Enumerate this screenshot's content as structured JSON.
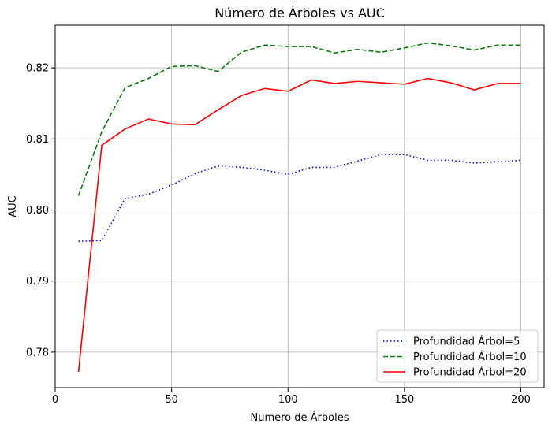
{
  "chart_data": {
    "type": "line",
    "title": "Número de Árboles vs AUC",
    "xlabel": "Numero de Árboles",
    "ylabel": "AUC",
    "xlim": [
      0,
      210
    ],
    "ylim": [
      0.775,
      0.826
    ],
    "xticks": [
      0,
      50,
      100,
      150,
      200
    ],
    "yticks": [
      0.78,
      0.79,
      0.8,
      0.81,
      0.82
    ],
    "ytick_labels": [
      "0.78",
      "0.79",
      "0.80",
      "0.81",
      "0.82"
    ],
    "grid": true,
    "legend_position": "lower-right",
    "x": [
      10,
      20,
      30,
      40,
      50,
      60,
      70,
      80,
      90,
      100,
      110,
      120,
      130,
      140,
      150,
      160,
      170,
      180,
      190,
      200
    ],
    "series": [
      {
        "name": "Profundidad Árbol=5",
        "color": "#0000ff",
        "dash": "dotted",
        "values": [
          0.7956,
          0.7957,
          0.8016,
          0.8022,
          0.8035,
          0.8051,
          0.8062,
          0.806,
          0.8056,
          0.805,
          0.806,
          0.806,
          0.8069,
          0.8078,
          0.8078,
          0.807,
          0.807,
          0.8066,
          0.8068,
          0.807
        ]
      },
      {
        "name": "Profundidad Árbol=10",
        "color": "#008000",
        "dash": "dashed",
        "values": [
          0.802,
          0.811,
          0.8172,
          0.8185,
          0.8202,
          0.8203,
          0.8195,
          0.8222,
          0.8232,
          0.823,
          0.823,
          0.8221,
          0.8226,
          0.8222,
          0.8228,
          0.8235,
          0.8231,
          0.8225,
          0.8232,
          0.8232
        ]
      },
      {
        "name": "Profundidad Árbol=20",
        "color": "#ff0000",
        "dash": "solid",
        "values": [
          0.7772,
          0.8091,
          0.8114,
          0.8128,
          0.8121,
          0.812,
          0.8141,
          0.8161,
          0.8171,
          0.8167,
          0.8183,
          0.8178,
          0.8181,
          0.8179,
          0.8177,
          0.8185,
          0.8179,
          0.8169,
          0.8178,
          0.8178
        ]
      }
    ]
  }
}
